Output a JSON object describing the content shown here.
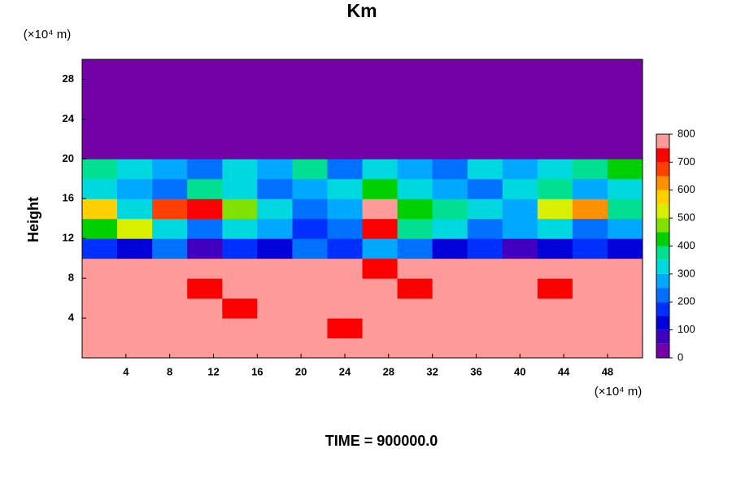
{
  "chart_data": {
    "type": "contour",
    "title": "Km",
    "y_unit": "(×10⁴ m)",
    "x_unit": "(×10⁴ m)",
    "y_label": "Height",
    "caption": "TIME = 900000.0",
    "xlim": [
      0,
      51.2
    ],
    "ylim": [
      0,
      30
    ],
    "xticks": [
      4,
      8,
      12,
      16,
      20,
      24,
      28,
      32,
      36,
      40,
      44,
      48
    ],
    "yticks": [
      4,
      8,
      12,
      16,
      20,
      24,
      28
    ],
    "levels": [
      0,
      50,
      100,
      150,
      200,
      250,
      300,
      350,
      400,
      450,
      500,
      550,
      600,
      650,
      700,
      750,
      800
    ],
    "colors": [
      "#7400a8",
      "#4000c0",
      "#0000d8",
      "#0030ff",
      "#0070ff",
      "#00a8ff",
      "#00d8e0",
      "#00e090",
      "#00d000",
      "#80e000",
      "#d8f000",
      "#ffd000",
      "#ff9000",
      "#ff4000",
      "#ff0000",
      "#ff9a9a"
    ],
    "colorbar_ticks": [
      0,
      100,
      200,
      300,
      400,
      500,
      600,
      700,
      800
    ],
    "z": [
      [
        800,
        800,
        800,
        800,
        800,
        800,
        800,
        800,
        800,
        800,
        800,
        800,
        800,
        800,
        800,
        800
      ],
      [
        800,
        800,
        800,
        800,
        800,
        800,
        800,
        700,
        800,
        800,
        800,
        800,
        800,
        800,
        800,
        800
      ],
      [
        800,
        800,
        750,
        800,
        700,
        800,
        800,
        800,
        800,
        800,
        800,
        800,
        800,
        750,
        800,
        800
      ],
      [
        800,
        800,
        800,
        700,
        800,
        800,
        800,
        800,
        800,
        700,
        800,
        800,
        800,
        700,
        800,
        800
      ],
      [
        800,
        800,
        800,
        800,
        800,
        800,
        800,
        800,
        700,
        800,
        800,
        800,
        800,
        800,
        800,
        800
      ],
      [
        150,
        100,
        200,
        50,
        150,
        100,
        200,
        150,
        250,
        200,
        100,
        150,
        50,
        100,
        150,
        100
      ],
      [
        400,
        500,
        300,
        200,
        300,
        250,
        150,
        200,
        700,
        350,
        300,
        200,
        250,
        300,
        200,
        250
      ],
      [
        550,
        300,
        650,
        700,
        450,
        300,
        200,
        250,
        750,
        400,
        350,
        300,
        250,
        500,
        600,
        350
      ],
      [
        300,
        250,
        200,
        350,
        300,
        200,
        250,
        300,
        400,
        300,
        250,
        200,
        300,
        350,
        250,
        300
      ],
      [
        350,
        300,
        250,
        200,
        300,
        250,
        350,
        200,
        300,
        250,
        200,
        300,
        250,
        300,
        350,
        400
      ],
      [
        0,
        0,
        0,
        0,
        0,
        0,
        0,
        0,
        0,
        0,
        0,
        0,
        0,
        0,
        0,
        0
      ],
      [
        0,
        0,
        0,
        0,
        0,
        0,
        0,
        0,
        0,
        0,
        0,
        0,
        0,
        0,
        0,
        0
      ],
      [
        0,
        0,
        0,
        0,
        0,
        0,
        0,
        0,
        0,
        0,
        0,
        0,
        0,
        0,
        0,
        0
      ],
      [
        0,
        0,
        0,
        0,
        0,
        0,
        0,
        0,
        0,
        0,
        0,
        0,
        0,
        0,
        0,
        0
      ],
      [
        0,
        0,
        0,
        0,
        0,
        0,
        0,
        0,
        0,
        0,
        0,
        0,
        0,
        0,
        0,
        0
      ]
    ]
  }
}
